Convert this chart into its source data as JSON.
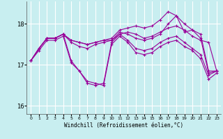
{
  "xlabel": "Windchill (Refroidissement éolien,°C)",
  "bg_color": "#c8eef0",
  "grid_color": "#ffffff",
  "line_color": "#990099",
  "xlim": [
    -0.5,
    23.5
  ],
  "ylim": [
    15.8,
    18.55
  ],
  "yticks": [
    16,
    17,
    18
  ],
  "xticks": [
    0,
    1,
    2,
    3,
    4,
    5,
    6,
    7,
    8,
    9,
    10,
    11,
    12,
    13,
    14,
    15,
    16,
    17,
    18,
    19,
    20,
    21,
    22,
    23
  ],
  "series": [
    [
      17.1,
      17.4,
      17.65,
      17.65,
      17.75,
      17.6,
      17.55,
      17.5,
      17.55,
      17.6,
      17.6,
      17.75,
      17.8,
      17.75,
      17.65,
      17.7,
      17.8,
      17.9,
      17.95,
      17.85,
      17.7,
      17.6,
      17.55,
      16.85
    ],
    [
      17.1,
      17.4,
      17.65,
      17.65,
      17.75,
      17.6,
      17.55,
      17.5,
      17.55,
      17.6,
      17.65,
      17.85,
      17.9,
      17.95,
      17.9,
      17.95,
      18.1,
      18.3,
      18.2,
      18.0,
      17.85,
      17.65,
      16.8,
      16.85
    ],
    [
      17.1,
      17.4,
      17.65,
      17.65,
      17.75,
      17.55,
      17.45,
      17.4,
      17.5,
      17.55,
      17.6,
      17.8,
      17.75,
      17.65,
      17.6,
      17.65,
      17.75,
      18.0,
      18.2,
      17.8,
      17.85,
      17.75,
      16.85,
      16.85
    ],
    [
      17.1,
      17.4,
      17.65,
      17.65,
      17.75,
      17.1,
      16.85,
      16.55,
      16.5,
      16.55,
      17.55,
      17.75,
      17.6,
      17.4,
      17.35,
      17.4,
      17.55,
      17.65,
      17.7,
      17.55,
      17.4,
      17.25,
      16.75,
      16.85
    ],
    [
      17.1,
      17.35,
      17.6,
      17.6,
      17.7,
      17.05,
      16.85,
      16.6,
      16.55,
      16.5,
      17.5,
      17.7,
      17.55,
      17.3,
      17.25,
      17.3,
      17.45,
      17.55,
      17.6,
      17.45,
      17.35,
      17.15,
      16.65,
      16.8
    ]
  ]
}
